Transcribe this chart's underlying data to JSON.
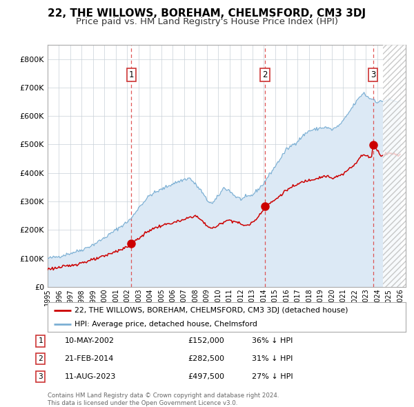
{
  "title": "22, THE WILLOWS, BOREHAM, CHELMSFORD, CM3 3DJ",
  "subtitle": "Price paid vs. HM Land Registry's House Price Index (HPI)",
  "title_fontsize": 11,
  "subtitle_fontsize": 9.5,
  "hpi_color": "#7bafd4",
  "hpi_fill_color": "#dce9f5",
  "property_color": "#cc0000",
  "background_color": "#ffffff",
  "grid_color": "#c8d0d8",
  "xlim_start": 1995.0,
  "xlim_end": 2026.5,
  "ylim_min": 0,
  "ylim_max": 850000,
  "yticks": [
    0,
    100000,
    200000,
    300000,
    400000,
    500000,
    600000,
    700000,
    800000
  ],
  "ytick_labels": [
    "£0",
    "£100K",
    "£200K",
    "£300K",
    "£400K",
    "£500K",
    "£600K",
    "£700K",
    "£800K"
  ],
  "xticks": [
    1995,
    1996,
    1997,
    1998,
    1999,
    2000,
    2001,
    2002,
    2003,
    2004,
    2005,
    2006,
    2007,
    2008,
    2009,
    2010,
    2011,
    2012,
    2013,
    2014,
    2015,
    2016,
    2017,
    2018,
    2019,
    2020,
    2021,
    2022,
    2023,
    2024,
    2025,
    2026
  ],
  "sale1_x": 2002.36,
  "sale1_y": 152000,
  "sale1_label": "1",
  "sale2_x": 2014.13,
  "sale2_y": 282500,
  "sale2_label": "2",
  "sale3_x": 2023.62,
  "sale3_y": 497500,
  "sale3_label": "3",
  "hatch_start": 2024.5,
  "legend_entries": [
    "22, THE WILLOWS, BOREHAM, CHELMSFORD, CM3 3DJ (detached house)",
    "HPI: Average price, detached house, Chelmsford"
  ],
  "table_rows": [
    {
      "num": "1",
      "date": "10-MAY-2002",
      "price": "£152,000",
      "pct": "36% ↓ HPI"
    },
    {
      "num": "2",
      "date": "21-FEB-2014",
      "price": "£282,500",
      "pct": "31% ↓ HPI"
    },
    {
      "num": "3",
      "date": "11-AUG-2023",
      "price": "£497,500",
      "pct": "27% ↓ HPI"
    }
  ],
  "footnote": "Contains HM Land Registry data © Crown copyright and database right 2024.\nThis data is licensed under the Open Government Licence v3.0."
}
